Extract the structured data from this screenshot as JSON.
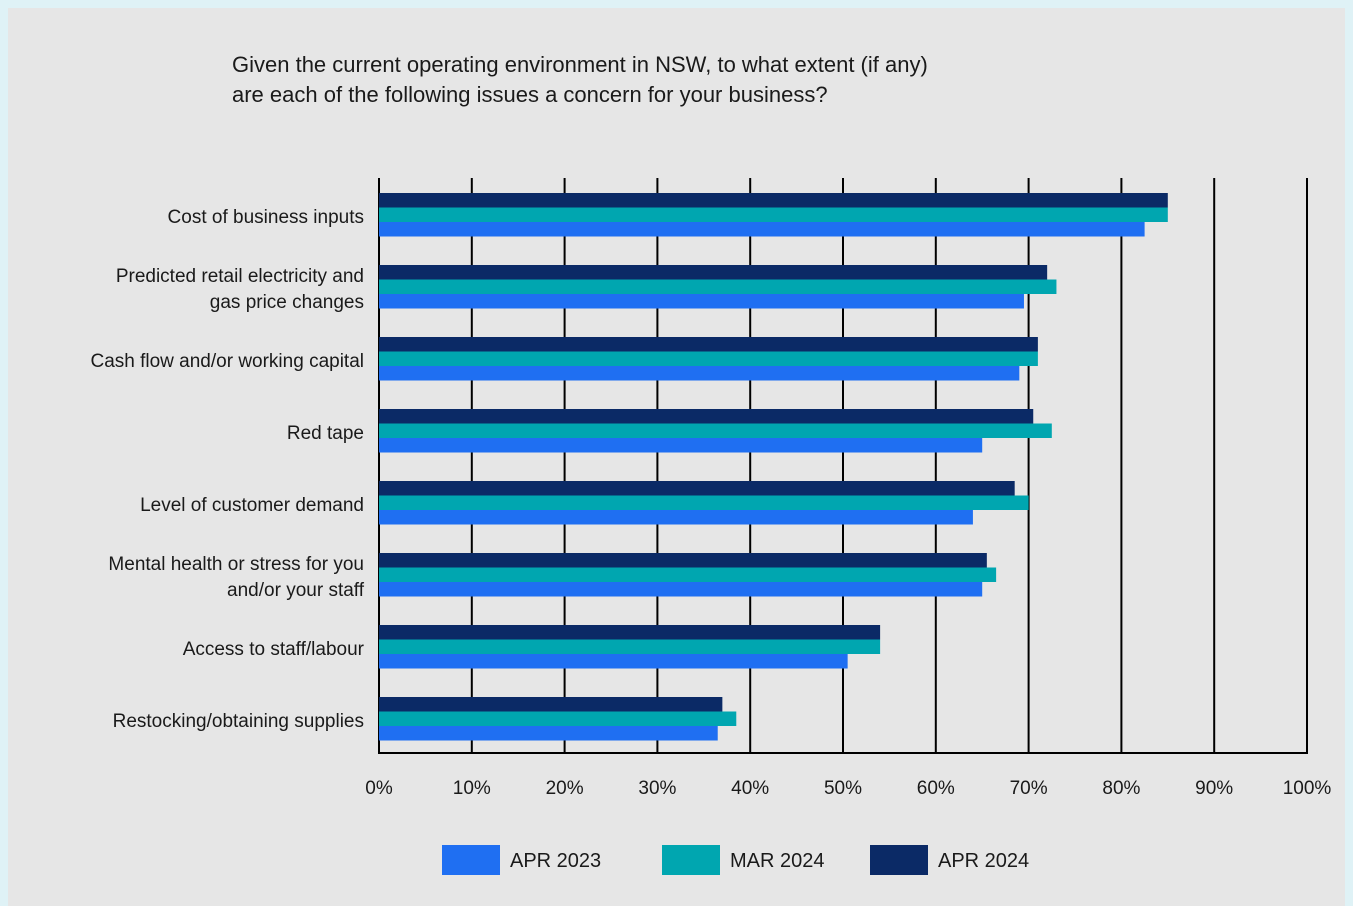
{
  "chart_data": {
    "type": "bar",
    "orientation": "horizontal",
    "title_lines": [
      "Given the current operating environment in NSW, to what extent (if any)",
      "are each of the following issues a concern for your business?"
    ],
    "categories": [
      [
        "Cost of business inputs"
      ],
      [
        "Predicted retail electricity and",
        "gas price changes"
      ],
      [
        "Cash flow and/or working capital"
      ],
      [
        "Red tape"
      ],
      [
        "Level of customer demand"
      ],
      [
        "Mental health or stress for you",
        "and/or your staff"
      ],
      [
        "Access to staff/labour"
      ],
      [
        "Restocking/obtaining supplies"
      ]
    ],
    "series": [
      {
        "name": "APR 2024",
        "color": "#0b2a66",
        "values": [
          85,
          72,
          71,
          70.5,
          68.5,
          65.5,
          54,
          37
        ]
      },
      {
        "name": "MAR 2024",
        "color": "#00a6b0",
        "values": [
          85,
          73,
          71,
          72.5,
          70,
          66.5,
          54,
          38.5
        ]
      },
      {
        "name": "APR 2023",
        "color": "#1f6ff2",
        "values": [
          82.5,
          69.5,
          69,
          65,
          64,
          65,
          50.5,
          36.5
        ]
      }
    ],
    "legend": [
      {
        "name": "APR 2023",
        "color": "#1f6ff2"
      },
      {
        "name": "MAR 2024",
        "color": "#00a6b0"
      },
      {
        "name": "APR 2024",
        "color": "#0b2a66"
      }
    ],
    "xlim": [
      0,
      100
    ],
    "x_ticks": [
      "0%",
      "10%",
      "20%",
      "30%",
      "40%",
      "50%",
      "60%",
      "70%",
      "80%",
      "90%",
      "100%"
    ],
    "grid": true,
    "legend_position": "bottom"
  }
}
